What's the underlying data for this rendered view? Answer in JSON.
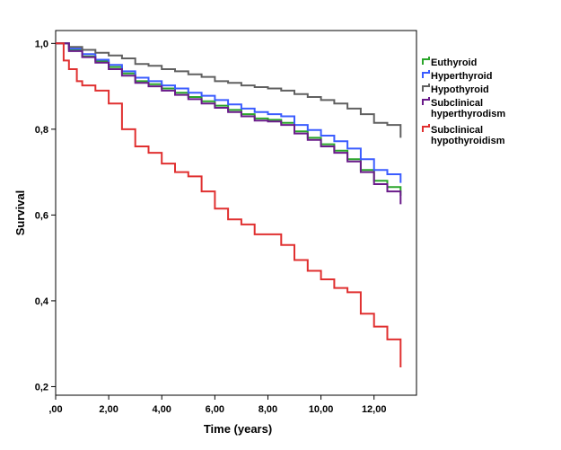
{
  "chart_data": {
    "type": "line",
    "step": true,
    "xlabel": "Time (years)",
    "ylabel": "Survival",
    "xlim": [
      0,
      13.6
    ],
    "ylim": [
      0.18,
      1.03
    ],
    "xticks": [
      0,
      2,
      4,
      6,
      8,
      10,
      12
    ],
    "xtick_labels": [
      ",00",
      "2,00",
      "4,00",
      "6,00",
      "8,00",
      "10,00",
      "12,00"
    ],
    "yticks": [
      0.2,
      0.4,
      0.6,
      0.8,
      1.0
    ],
    "ytick_labels": [
      "0,2",
      "0,4",
      "0,6",
      "0,8",
      "1,0"
    ],
    "grid": false,
    "legend_position": "right",
    "series": [
      {
        "name": "Euthyroid",
        "color": "#2aa52a",
        "points": [
          [
            0,
            1.0
          ],
          [
            0.5,
            0.985
          ],
          [
            1,
            0.97
          ],
          [
            1.5,
            0.958
          ],
          [
            2,
            0.945
          ],
          [
            2.5,
            0.93
          ],
          [
            3,
            0.912
          ],
          [
            3.5,
            0.905
          ],
          [
            4,
            0.895
          ],
          [
            4.5,
            0.885
          ],
          [
            5,
            0.875
          ],
          [
            5.5,
            0.865
          ],
          [
            6,
            0.855
          ],
          [
            6.5,
            0.845
          ],
          [
            7,
            0.835
          ],
          [
            7.5,
            0.825
          ],
          [
            8,
            0.822
          ],
          [
            8.5,
            0.815
          ],
          [
            9,
            0.795
          ],
          [
            9.5,
            0.78
          ],
          [
            10,
            0.765
          ],
          [
            10.5,
            0.75
          ],
          [
            11,
            0.73
          ],
          [
            11.5,
            0.705
          ],
          [
            12,
            0.68
          ],
          [
            12.5,
            0.665
          ],
          [
            13,
            0.645
          ]
        ]
      },
      {
        "name": "Hyperthyroid",
        "color": "#3b5cff",
        "points": [
          [
            0,
            1.0
          ],
          [
            0.5,
            0.988
          ],
          [
            1,
            0.975
          ],
          [
            1.5,
            0.962
          ],
          [
            2,
            0.95
          ],
          [
            2.5,
            0.935
          ],
          [
            3,
            0.92
          ],
          [
            3.5,
            0.912
          ],
          [
            4,
            0.902
          ],
          [
            4.5,
            0.895
          ],
          [
            5,
            0.885
          ],
          [
            5.5,
            0.878
          ],
          [
            6,
            0.868
          ],
          [
            6.5,
            0.858
          ],
          [
            7,
            0.848
          ],
          [
            7.5,
            0.84
          ],
          [
            8,
            0.835
          ],
          [
            8.5,
            0.83
          ],
          [
            9,
            0.81
          ],
          [
            9.5,
            0.798
          ],
          [
            10,
            0.785
          ],
          [
            10.5,
            0.772
          ],
          [
            11,
            0.755
          ],
          [
            11.5,
            0.73
          ],
          [
            12,
            0.705
          ],
          [
            12.5,
            0.695
          ],
          [
            13,
            0.675
          ]
        ]
      },
      {
        "name": "Hypothyroid",
        "color": "#606060",
        "points": [
          [
            0,
            1.0
          ],
          [
            0.5,
            0.992
          ],
          [
            1,
            0.985
          ],
          [
            1.5,
            0.978
          ],
          [
            2,
            0.972
          ],
          [
            2.5,
            0.965
          ],
          [
            3,
            0.952
          ],
          [
            3.5,
            0.948
          ],
          [
            4,
            0.94
          ],
          [
            4.5,
            0.935
          ],
          [
            5,
            0.928
          ],
          [
            5.5,
            0.922
          ],
          [
            6,
            0.912
          ],
          [
            6.5,
            0.908
          ],
          [
            7,
            0.902
          ],
          [
            7.5,
            0.898
          ],
          [
            8,
            0.895
          ],
          [
            8.5,
            0.89
          ],
          [
            9,
            0.882
          ],
          [
            9.5,
            0.875
          ],
          [
            10,
            0.868
          ],
          [
            10.5,
            0.86
          ],
          [
            11,
            0.848
          ],
          [
            11.5,
            0.835
          ],
          [
            12,
            0.815
          ],
          [
            12.5,
            0.81
          ],
          [
            13,
            0.78
          ]
        ]
      },
      {
        "name": "Subclinical hyperthyrodism",
        "color": "#6a1b8a",
        "points": [
          [
            0,
            1.0
          ],
          [
            0.5,
            0.982
          ],
          [
            1,
            0.968
          ],
          [
            1.5,
            0.955
          ],
          [
            2,
            0.94
          ],
          [
            2.5,
            0.925
          ],
          [
            3,
            0.908
          ],
          [
            3.5,
            0.9
          ],
          [
            4,
            0.89
          ],
          [
            4.5,
            0.88
          ],
          [
            5,
            0.87
          ],
          [
            5.5,
            0.86
          ],
          [
            6,
            0.85
          ],
          [
            6.5,
            0.84
          ],
          [
            7,
            0.83
          ],
          [
            7.5,
            0.82
          ],
          [
            8,
            0.818
          ],
          [
            8.5,
            0.81
          ],
          [
            9,
            0.79
          ],
          [
            9.5,
            0.775
          ],
          [
            10,
            0.76
          ],
          [
            10.5,
            0.745
          ],
          [
            11,
            0.725
          ],
          [
            11.5,
            0.7
          ],
          [
            12,
            0.672
          ],
          [
            12.5,
            0.655
          ],
          [
            13,
            0.625
          ]
        ]
      },
      {
        "name": "Subclinical hypothyroidism",
        "color": "#e03030",
        "points": [
          [
            0,
            1.0
          ],
          [
            0.3,
            0.96
          ],
          [
            0.5,
            0.94
          ],
          [
            0.8,
            0.912
          ],
          [
            1,
            0.902
          ],
          [
            1.5,
            0.89
          ],
          [
            2,
            0.86
          ],
          [
            2.5,
            0.8
          ],
          [
            3,
            0.76
          ],
          [
            3.5,
            0.745
          ],
          [
            4,
            0.72
          ],
          [
            4.5,
            0.7
          ],
          [
            5,
            0.69
          ],
          [
            5.5,
            0.655
          ],
          [
            6,
            0.615
          ],
          [
            6.5,
            0.59
          ],
          [
            7,
            0.578
          ],
          [
            7.5,
            0.555
          ],
          [
            8,
            0.555
          ],
          [
            8.5,
            0.53
          ],
          [
            9,
            0.495
          ],
          [
            9.5,
            0.47
          ],
          [
            10,
            0.45
          ],
          [
            10.5,
            0.43
          ],
          [
            11,
            0.42
          ],
          [
            11.5,
            0.37
          ],
          [
            12,
            0.34
          ],
          [
            12.5,
            0.31
          ],
          [
            13,
            0.245
          ]
        ]
      }
    ]
  }
}
